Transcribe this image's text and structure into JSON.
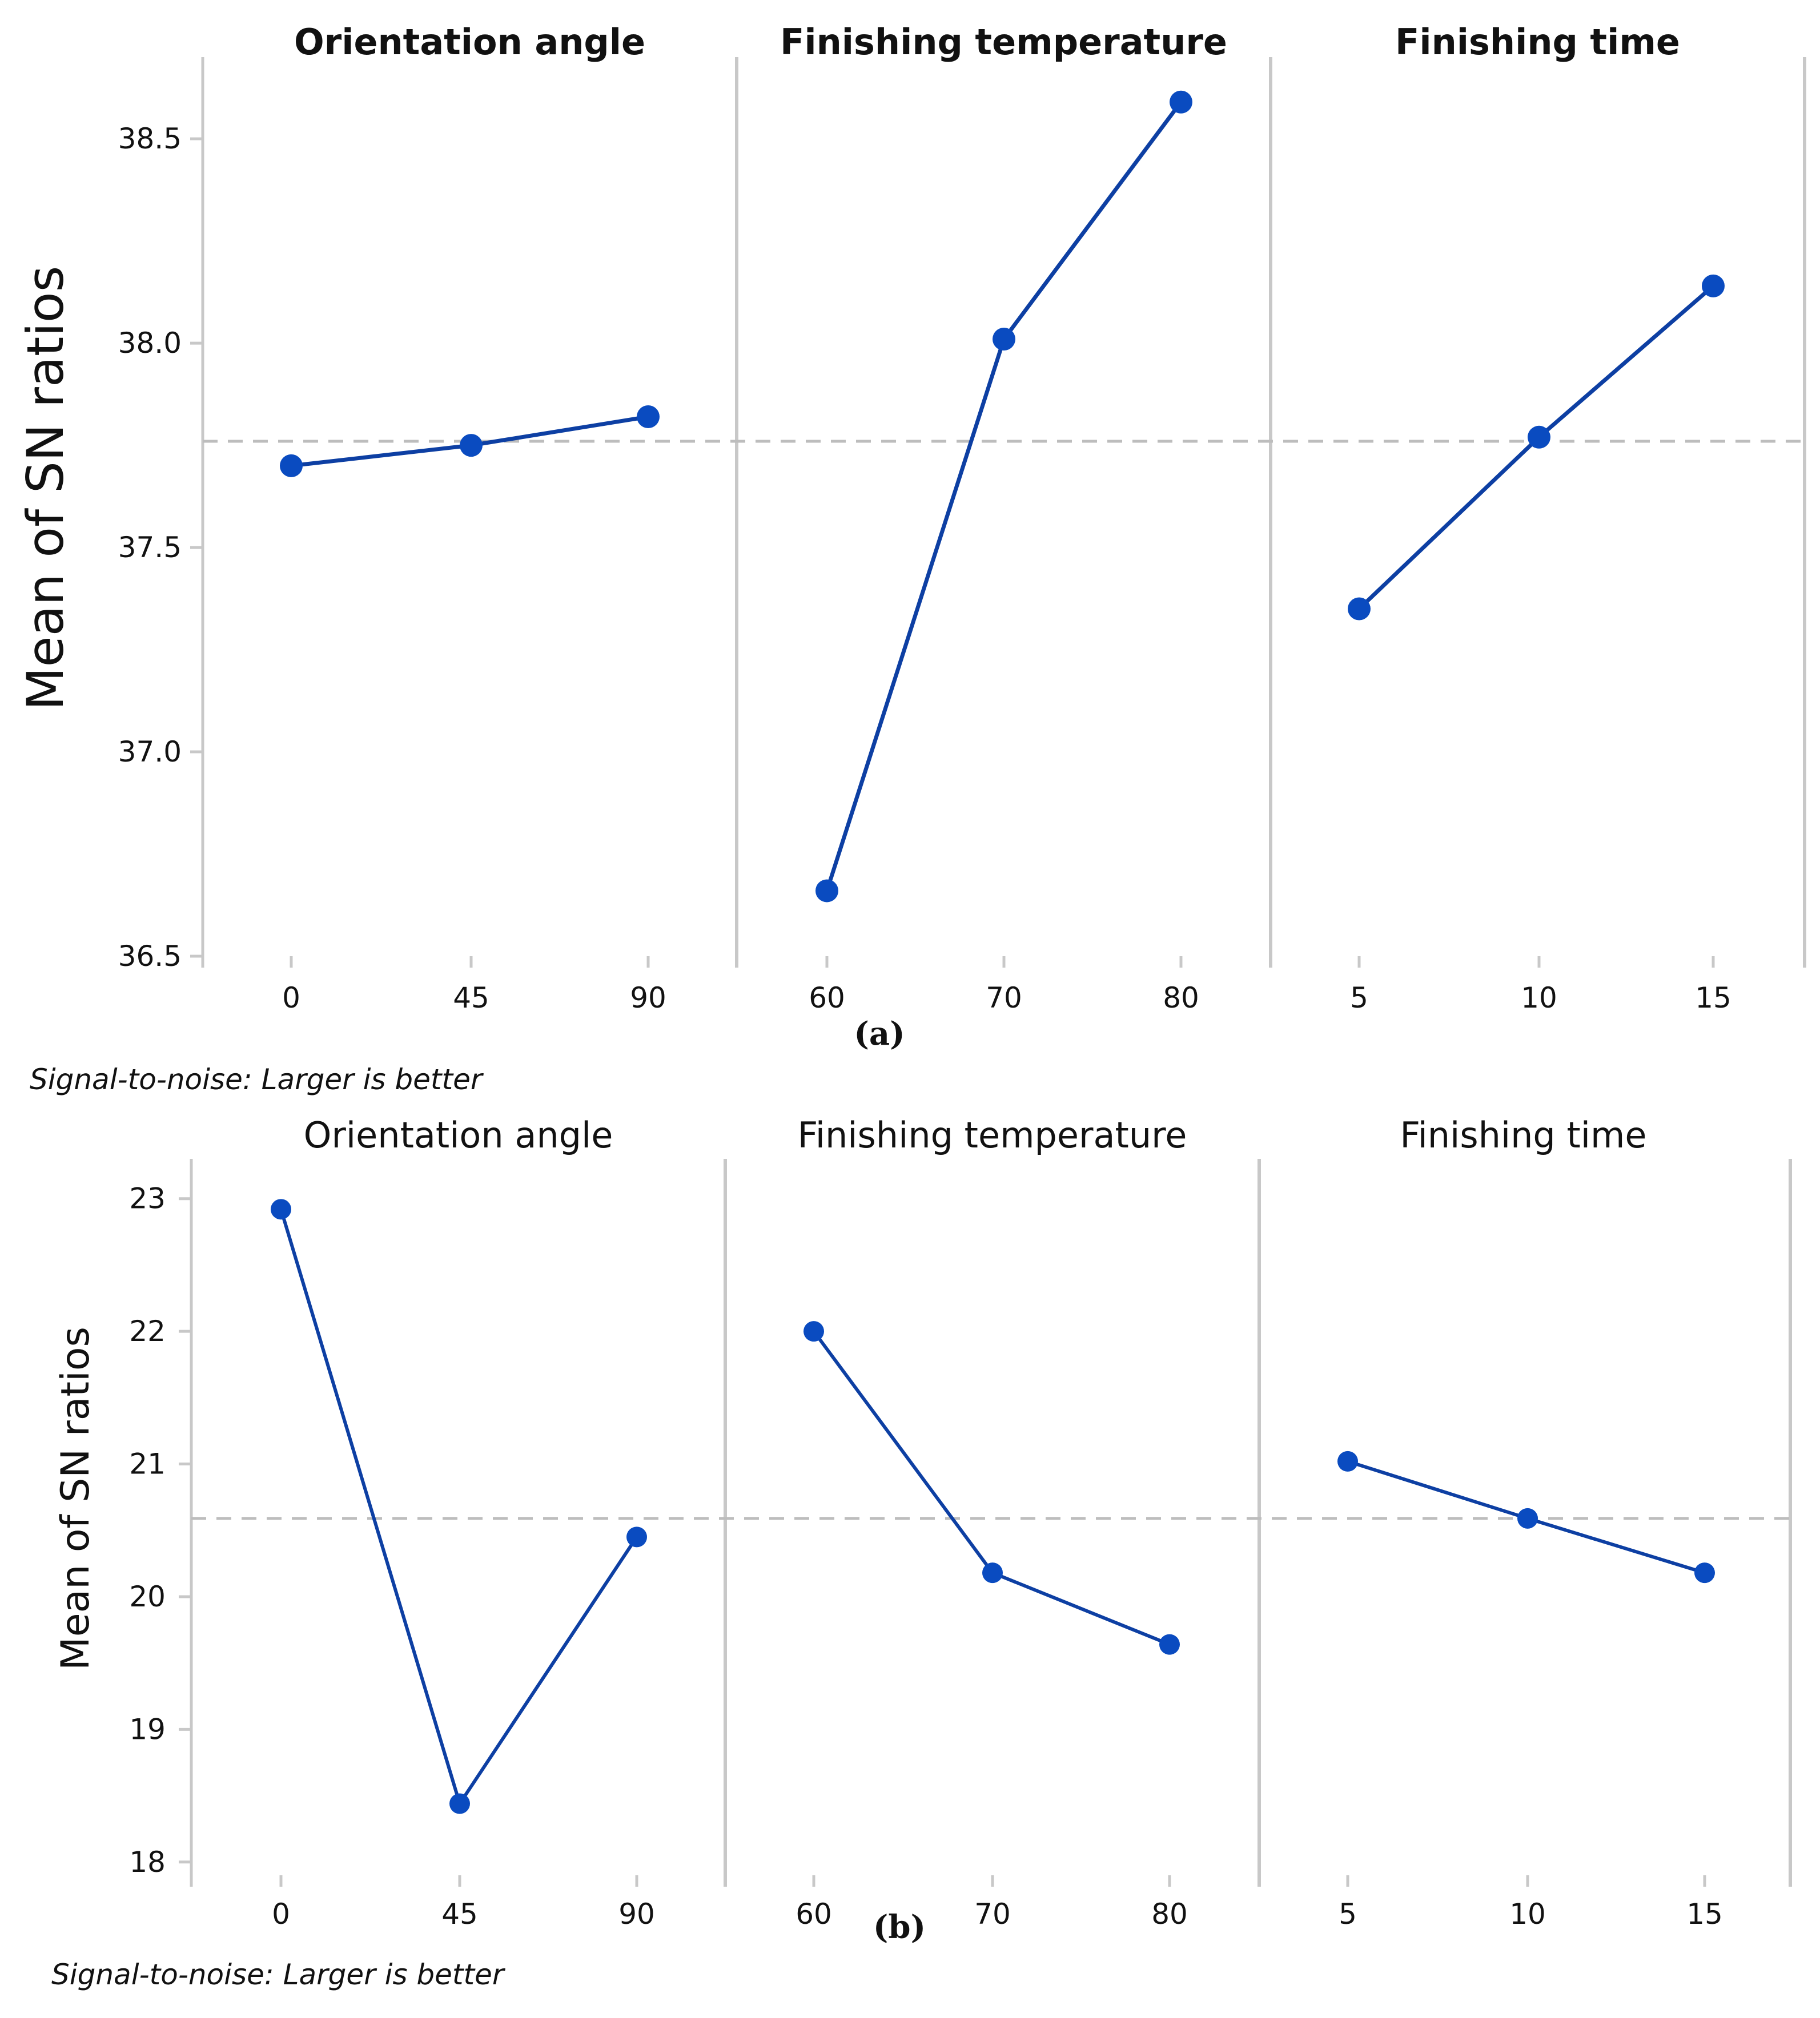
{
  "figure": {
    "panel_a_label": "(a)",
    "panel_b_label": "(b)",
    "footnote_a": "Signal-to-noise: Larger is better",
    "footnote_b": "Signal-to-noise: Larger is better"
  },
  "colors": {
    "series": "#0d3fa3",
    "marker": "#0a4bc0",
    "divider": "#c8c8c8",
    "reference": "#bdbdbd"
  },
  "chart_data": [
    {
      "type": "line",
      "panel_label": "(a)",
      "ylabel": "Mean of SN ratios",
      "ylim": [
        36.5,
        38.7
      ],
      "yticks": [
        36.5,
        37.0,
        37.5,
        38.0,
        38.5
      ],
      "ytick_labels": [
        "36.5",
        "37.0",
        "37.5",
        "38.0",
        "38.5"
      ],
      "reference_line": 37.76,
      "grid": false,
      "series_color": "#0d3fa3",
      "facets": [
        {
          "title": "Orientation angle",
          "categories": [
            "0",
            "45",
            "90"
          ],
          "values": [
            37.7,
            37.75,
            37.82
          ]
        },
        {
          "title": "Finishing temperature",
          "categories": [
            "60",
            "70",
            "80"
          ],
          "values": [
            36.66,
            38.01,
            38.59
          ]
        },
        {
          "title": "Finishing time",
          "categories": [
            "5",
            "10",
            "15"
          ],
          "values": [
            37.35,
            37.77,
            38.14
          ]
        }
      ],
      "note": "Signal-to-noise: Larger is better"
    },
    {
      "type": "line",
      "panel_label": "(b)",
      "ylabel": "Mean of SN ratios",
      "ylim": [
        17.9,
        23.3
      ],
      "yticks": [
        18,
        19,
        20,
        21,
        22,
        23
      ],
      "ytick_labels": [
        "18",
        "19",
        "20",
        "21",
        "22",
        "23"
      ],
      "reference_line": 20.59,
      "grid": false,
      "series_color": "#0d3fa3",
      "facets": [
        {
          "title": "Orientation angle",
          "categories": [
            "0",
            "45",
            "90"
          ],
          "values": [
            22.92,
            18.44,
            20.45
          ]
        },
        {
          "title": "Finishing temperature",
          "categories": [
            "60",
            "70",
            "80"
          ],
          "values": [
            22.0,
            20.18,
            19.64
          ]
        },
        {
          "title": "Finishing time",
          "categories": [
            "5",
            "10",
            "15"
          ],
          "values": [
            21.02,
            20.59,
            20.18
          ]
        }
      ],
      "note": "Signal-to-noise: Larger is better"
    }
  ]
}
